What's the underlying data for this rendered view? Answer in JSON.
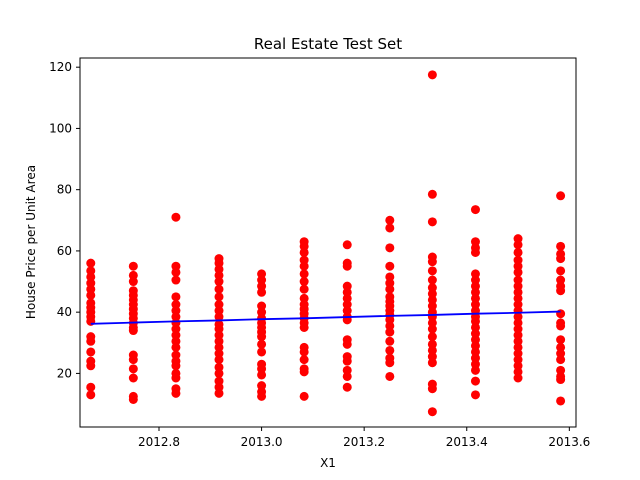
{
  "chart_data": {
    "type": "scatter",
    "title": "Real Estate Test Set",
    "xlabel": "X1",
    "ylabel": "House Price per Unit Area",
    "xlim": [
      2012.646,
      2013.613
    ],
    "ylim": [
      2.5,
      123
    ],
    "x_ticks": [
      2012.8,
      2013.0,
      2013.2,
      2013.4,
      2013.6
    ],
    "x_tick_labels": [
      "2012.8",
      "2013.0",
      "2013.2",
      "2013.4",
      "2013.6"
    ],
    "y_ticks": [
      20,
      40,
      60,
      80,
      100,
      120
    ],
    "y_tick_labels": [
      "20",
      "40",
      "60",
      "80",
      "100",
      "120"
    ],
    "grid": false,
    "series": [
      {
        "type": "scatter",
        "color": "#ff0000",
        "points": [
          [
            2012.667,
            56.0
          ],
          [
            2012.667,
            53.5
          ],
          [
            2012.667,
            51.5
          ],
          [
            2012.667,
            49.5
          ],
          [
            2012.667,
            47.5
          ],
          [
            2012.667,
            45.5
          ],
          [
            2012.667,
            43.0
          ],
          [
            2012.667,
            41.5
          ],
          [
            2012.667,
            40.0
          ],
          [
            2012.667,
            38.5
          ],
          [
            2012.667,
            37.0
          ],
          [
            2012.667,
            32.0
          ],
          [
            2012.667,
            30.5
          ],
          [
            2012.667,
            27.0
          ],
          [
            2012.667,
            24.0
          ],
          [
            2012.667,
            22.5
          ],
          [
            2012.667,
            15.5
          ],
          [
            2012.667,
            13.0
          ],
          [
            2012.75,
            55.0
          ],
          [
            2012.75,
            52.0
          ],
          [
            2012.75,
            50.0
          ],
          [
            2012.75,
            47.0
          ],
          [
            2012.75,
            45.5
          ],
          [
            2012.75,
            44.0
          ],
          [
            2012.75,
            42.5
          ],
          [
            2012.75,
            41.0
          ],
          [
            2012.75,
            39.5
          ],
          [
            2012.75,
            38.0
          ],
          [
            2012.75,
            36.5
          ],
          [
            2012.75,
            35.0
          ],
          [
            2012.75,
            34.0
          ],
          [
            2012.75,
            26.0
          ],
          [
            2012.75,
            24.5
          ],
          [
            2012.75,
            21.5
          ],
          [
            2012.75,
            18.5
          ],
          [
            2012.75,
            12.5
          ],
          [
            2012.75,
            11.5
          ],
          [
            2012.833,
            71.0
          ],
          [
            2012.833,
            55.0
          ],
          [
            2012.833,
            53.0
          ],
          [
            2012.833,
            50.5
          ],
          [
            2012.833,
            45.0
          ],
          [
            2012.833,
            42.5
          ],
          [
            2012.833,
            40.5
          ],
          [
            2012.833,
            38.5
          ],
          [
            2012.833,
            36.5
          ],
          [
            2012.833,
            34.5
          ],
          [
            2012.833,
            32.5
          ],
          [
            2012.833,
            30.5
          ],
          [
            2012.833,
            28.5
          ],
          [
            2012.833,
            26.0
          ],
          [
            2012.833,
            24.0
          ],
          [
            2012.833,
            22.5
          ],
          [
            2012.833,
            20.0
          ],
          [
            2012.833,
            18.5
          ],
          [
            2012.833,
            15.0
          ],
          [
            2012.833,
            13.5
          ],
          [
            2012.917,
            57.5
          ],
          [
            2012.917,
            56.0
          ],
          [
            2012.917,
            54.0
          ],
          [
            2012.917,
            52.0
          ],
          [
            2012.917,
            50.0
          ],
          [
            2012.917,
            47.5
          ],
          [
            2012.917,
            45.0
          ],
          [
            2012.917,
            42.5
          ],
          [
            2012.917,
            40.5
          ],
          [
            2012.917,
            38.5
          ],
          [
            2012.917,
            36.0
          ],
          [
            2012.917,
            34.5
          ],
          [
            2012.917,
            32.5
          ],
          [
            2012.917,
            30.5
          ],
          [
            2012.917,
            28.5
          ],
          [
            2012.917,
            26.5
          ],
          [
            2012.917,
            24.5
          ],
          [
            2012.917,
            22.0
          ],
          [
            2012.917,
            20.0
          ],
          [
            2012.917,
            17.5
          ],
          [
            2012.917,
            15.5
          ],
          [
            2012.917,
            13.5
          ],
          [
            2013.0,
            52.5
          ],
          [
            2013.0,
            50.5
          ],
          [
            2013.0,
            48.5
          ],
          [
            2013.0,
            46.5
          ],
          [
            2013.0,
            42.0
          ],
          [
            2013.0,
            40.0
          ],
          [
            2013.0,
            38.0
          ],
          [
            2013.0,
            36.5
          ],
          [
            2013.0,
            35.0
          ],
          [
            2013.0,
            33.5
          ],
          [
            2013.0,
            32.0
          ],
          [
            2013.0,
            29.5
          ],
          [
            2013.0,
            27.0
          ],
          [
            2013.0,
            23.0
          ],
          [
            2013.0,
            21.5
          ],
          [
            2013.0,
            19.5
          ],
          [
            2013.0,
            16.0
          ],
          [
            2013.0,
            14.0
          ],
          [
            2013.0,
            12.5
          ],
          [
            2013.083,
            63.0
          ],
          [
            2013.083,
            61.5
          ],
          [
            2013.083,
            59.5
          ],
          [
            2013.083,
            57.0
          ],
          [
            2013.083,
            55.0
          ],
          [
            2013.083,
            52.5
          ],
          [
            2013.083,
            50.0
          ],
          [
            2013.083,
            47.5
          ],
          [
            2013.083,
            44.5
          ],
          [
            2013.083,
            42.5
          ],
          [
            2013.083,
            41.0
          ],
          [
            2013.083,
            39.5
          ],
          [
            2013.083,
            38.0
          ],
          [
            2013.083,
            36.5
          ],
          [
            2013.083,
            35.0
          ],
          [
            2013.083,
            28.5
          ],
          [
            2013.083,
            27.0
          ],
          [
            2013.083,
            24.5
          ],
          [
            2013.083,
            21.5
          ],
          [
            2013.083,
            20.5
          ],
          [
            2013.083,
            12.5
          ],
          [
            2013.167,
            62.0
          ],
          [
            2013.167,
            56.0
          ],
          [
            2013.167,
            55.0
          ],
          [
            2013.167,
            48.5
          ],
          [
            2013.167,
            46.5
          ],
          [
            2013.167,
            44.5
          ],
          [
            2013.167,
            42.5
          ],
          [
            2013.167,
            40.5
          ],
          [
            2013.167,
            38.5
          ],
          [
            2013.167,
            37.5
          ],
          [
            2013.167,
            31.0
          ],
          [
            2013.167,
            29.5
          ],
          [
            2013.167,
            25.5
          ],
          [
            2013.167,
            24.0
          ],
          [
            2013.167,
            21.0
          ],
          [
            2013.167,
            19.0
          ],
          [
            2013.167,
            15.5
          ],
          [
            2013.25,
            70.0
          ],
          [
            2013.25,
            67.5
          ],
          [
            2013.25,
            61.0
          ],
          [
            2013.25,
            55.0
          ],
          [
            2013.25,
            51.5
          ],
          [
            2013.25,
            49.5
          ],
          [
            2013.25,
            47.5
          ],
          [
            2013.25,
            45.0
          ],
          [
            2013.25,
            43.5
          ],
          [
            2013.25,
            42.0
          ],
          [
            2013.25,
            40.5
          ],
          [
            2013.25,
            39.0
          ],
          [
            2013.25,
            37.5
          ],
          [
            2013.25,
            35.5
          ],
          [
            2013.25,
            33.5
          ],
          [
            2013.25,
            30.5
          ],
          [
            2013.25,
            27.5
          ],
          [
            2013.25,
            25.0
          ],
          [
            2013.25,
            23.5
          ],
          [
            2013.25,
            19.0
          ],
          [
            2013.333,
            117.5
          ],
          [
            2013.333,
            78.5
          ],
          [
            2013.333,
            69.5
          ],
          [
            2013.333,
            58.0
          ],
          [
            2013.333,
            56.5
          ],
          [
            2013.333,
            53.5
          ],
          [
            2013.333,
            50.5
          ],
          [
            2013.333,
            48.0
          ],
          [
            2013.333,
            46.0
          ],
          [
            2013.333,
            44.0
          ],
          [
            2013.333,
            42.0
          ],
          [
            2013.333,
            40.0
          ],
          [
            2013.333,
            38.5
          ],
          [
            2013.333,
            36.5
          ],
          [
            2013.333,
            34.5
          ],
          [
            2013.333,
            32.0
          ],
          [
            2013.333,
            29.5
          ],
          [
            2013.333,
            27.5
          ],
          [
            2013.333,
            25.5
          ],
          [
            2013.333,
            23.5
          ],
          [
            2013.333,
            16.5
          ],
          [
            2013.333,
            15.0
          ],
          [
            2013.333,
            7.5
          ],
          [
            2013.417,
            73.5
          ],
          [
            2013.417,
            63.0
          ],
          [
            2013.417,
            61.0
          ],
          [
            2013.417,
            59.5
          ],
          [
            2013.417,
            52.5
          ],
          [
            2013.417,
            50.5
          ],
          [
            2013.417,
            48.5
          ],
          [
            2013.417,
            46.5
          ],
          [
            2013.417,
            44.5
          ],
          [
            2013.417,
            42.5
          ],
          [
            2013.417,
            40.5
          ],
          [
            2013.417,
            38.5
          ],
          [
            2013.417,
            37.0
          ],
          [
            2013.417,
            35.0
          ],
          [
            2013.417,
            33.0
          ],
          [
            2013.417,
            31.0
          ],
          [
            2013.417,
            29.0
          ],
          [
            2013.417,
            27.0
          ],
          [
            2013.417,
            25.0
          ],
          [
            2013.417,
            23.0
          ],
          [
            2013.417,
            21.0
          ],
          [
            2013.417,
            17.5
          ],
          [
            2013.417,
            13.0
          ],
          [
            2013.5,
            64.0
          ],
          [
            2013.5,
            62.0
          ],
          [
            2013.5,
            59.5
          ],
          [
            2013.5,
            57.0
          ],
          [
            2013.5,
            55.0
          ],
          [
            2013.5,
            53.0
          ],
          [
            2013.5,
            50.5
          ],
          [
            2013.5,
            48.5
          ],
          [
            2013.5,
            46.5
          ],
          [
            2013.5,
            44.5
          ],
          [
            2013.5,
            42.5
          ],
          [
            2013.5,
            40.5
          ],
          [
            2013.5,
            38.5
          ],
          [
            2013.5,
            36.5
          ],
          [
            2013.5,
            34.5
          ],
          [
            2013.5,
            32.5
          ],
          [
            2013.5,
            30.5
          ],
          [
            2013.5,
            28.5
          ],
          [
            2013.5,
            26.5
          ],
          [
            2013.5,
            24.5
          ],
          [
            2013.5,
            22.5
          ],
          [
            2013.5,
            20.5
          ],
          [
            2013.5,
            18.5
          ],
          [
            2013.583,
            78.0
          ],
          [
            2013.583,
            61.5
          ],
          [
            2013.583,
            59.0
          ],
          [
            2013.583,
            57.5
          ],
          [
            2013.583,
            53.5
          ],
          [
            2013.583,
            50.5
          ],
          [
            2013.583,
            48.5
          ],
          [
            2013.583,
            47.0
          ],
          [
            2013.583,
            39.5
          ],
          [
            2013.583,
            36.5
          ],
          [
            2013.583,
            35.5
          ],
          [
            2013.583,
            31.0
          ],
          [
            2013.583,
            28.5
          ],
          [
            2013.583,
            26.5
          ],
          [
            2013.583,
            24.5
          ],
          [
            2013.583,
            21.0
          ],
          [
            2013.583,
            19.0
          ],
          [
            2013.583,
            18.0
          ],
          [
            2013.583,
            11.0
          ]
        ]
      },
      {
        "type": "line",
        "color": "#0000ff",
        "x": [
          2012.667,
          2012.75,
          2012.833,
          2012.917,
          2013.0,
          2013.083,
          2013.167,
          2013.25,
          2013.333,
          2013.417,
          2013.5,
          2013.583
        ],
        "y": [
          36.2,
          36.6,
          37.0,
          37.3,
          37.7,
          38.0,
          38.4,
          38.8,
          39.1,
          39.5,
          39.8,
          40.2
        ]
      }
    ]
  }
}
